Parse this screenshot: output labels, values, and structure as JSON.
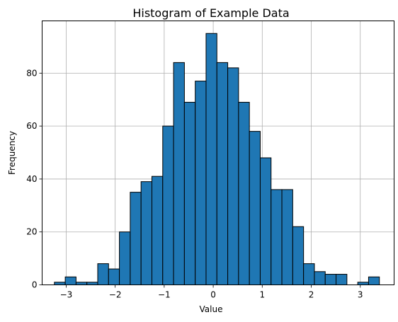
{
  "chart_data": {
    "type": "bar",
    "title": "Histogram of Example Data",
    "xlabel": "Value",
    "ylabel": "Frequency",
    "grid": true,
    "legend": "none",
    "xlim": [
      -3.49,
      3.69
    ],
    "ylim": [
      0,
      99.75
    ],
    "x_ticks": [
      -3,
      -2,
      -1,
      0,
      1,
      2,
      3
    ],
    "y_ticks": [
      0,
      20,
      40,
      60,
      80
    ],
    "bin_start": -3.24,
    "bin_width": 0.221,
    "values": [
      1,
      3,
      1,
      1,
      8,
      6,
      20,
      35,
      39,
      41,
      60,
      84,
      69,
      77,
      95,
      84,
      82,
      69,
      58,
      48,
      36,
      36,
      22,
      8,
      5,
      4,
      4,
      0,
      1,
      3
    ],
    "colors": {
      "bar_fill": "#1f77b4",
      "bar_edge": "#000000",
      "grid": "#b0b0b0",
      "axes": "#000000"
    }
  }
}
